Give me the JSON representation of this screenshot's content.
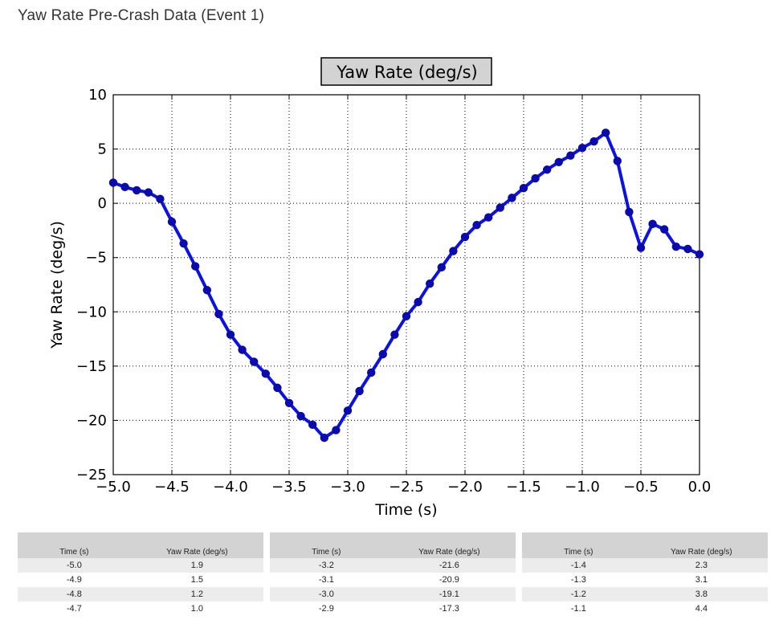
{
  "page": {
    "heading": "Yaw Rate Pre-Crash Data (Event 1)"
  },
  "chart_data": {
    "type": "line",
    "title": "Yaw Rate (deg/s)",
    "xlabel": "Time (s)",
    "ylabel": "Yaw Rate (deg/s)",
    "xlim": [
      -5.0,
      0.0
    ],
    "ylim": [
      -25,
      10
    ],
    "xticks": [
      "−5.0",
      "−4.5",
      "−4.0",
      "−3.5",
      "−3.0",
      "−2.5",
      "−2.0",
      "−1.5",
      "−1.0",
      "−0.5",
      "0.0"
    ],
    "xtick_values": [
      -5.0,
      -4.5,
      -4.0,
      -3.5,
      -3.0,
      -2.5,
      -2.0,
      -1.5,
      -1.0,
      -0.5,
      0.0
    ],
    "yticks": [
      "10",
      "5",
      "0",
      "−5",
      "−10",
      "−15",
      "−20",
      "−25"
    ],
    "ytick_values": [
      10,
      5,
      0,
      -5,
      -10,
      -15,
      -20,
      -25
    ],
    "grid": true,
    "line_color": "#0b12e6",
    "marker_color": "#0a0ab5",
    "series": [
      {
        "x": [
          -5.0,
          -4.9,
          -4.8,
          -4.7,
          -4.6,
          -4.5,
          -4.4,
          -4.3,
          -4.2,
          -4.1,
          -4.0,
          -3.9,
          -3.8,
          -3.7,
          -3.6,
          -3.5,
          -3.4,
          -3.3,
          -3.2,
          -3.1,
          -3.0,
          -2.9,
          -2.8,
          -2.7,
          -2.6,
          -2.5,
          -2.4,
          -2.3,
          -2.2,
          -2.1,
          -2.0,
          -1.9,
          -1.8,
          -1.7,
          -1.6,
          -1.5,
          -1.4,
          -1.3,
          -1.2,
          -1.1,
          -1.0,
          -0.9,
          -0.8,
          -0.7,
          -0.6,
          -0.5,
          -0.4,
          -0.3,
          -0.2,
          -0.1,
          0.0
        ],
        "y": [
          1.9,
          1.5,
          1.2,
          1.0,
          0.4,
          -1.7,
          -3.7,
          -5.8,
          -8.0,
          -10.2,
          -12.1,
          -13.5,
          -14.6,
          -15.7,
          -17.0,
          -18.4,
          -19.6,
          -20.4,
          -21.6,
          -20.9,
          -19.1,
          -17.3,
          -15.6,
          -13.9,
          -12.1,
          -10.4,
          -9.1,
          -7.4,
          -5.9,
          -4.4,
          -3.1,
          -2.0,
          -1.3,
          -0.4,
          0.5,
          1.4,
          2.3,
          3.1,
          3.8,
          4.4,
          5.1,
          5.7,
          6.5,
          3.9,
          -0.8,
          -4.1,
          -1.9,
          -2.4,
          -4.0,
          -4.2,
          -4.7
        ]
      }
    ]
  },
  "tables": {
    "headers": [
      "Time (s)",
      "Yaw Rate (deg/s)"
    ],
    "groups": [
      [
        [
          "-5.0",
          "1.9"
        ],
        [
          "-4.9",
          "1.5"
        ],
        [
          "-4.8",
          "1.2"
        ],
        [
          "-4.7",
          "1.0"
        ]
      ],
      [
        [
          "-3.2",
          "-21.6"
        ],
        [
          "-3.1",
          "-20.9"
        ],
        [
          "-3.0",
          "-19.1"
        ],
        [
          "-2.9",
          "-17.3"
        ]
      ],
      [
        [
          "-1.4",
          "2.3"
        ],
        [
          "-1.3",
          "3.1"
        ],
        [
          "-1.2",
          "3.8"
        ],
        [
          "-1.1",
          "4.4"
        ]
      ]
    ]
  }
}
